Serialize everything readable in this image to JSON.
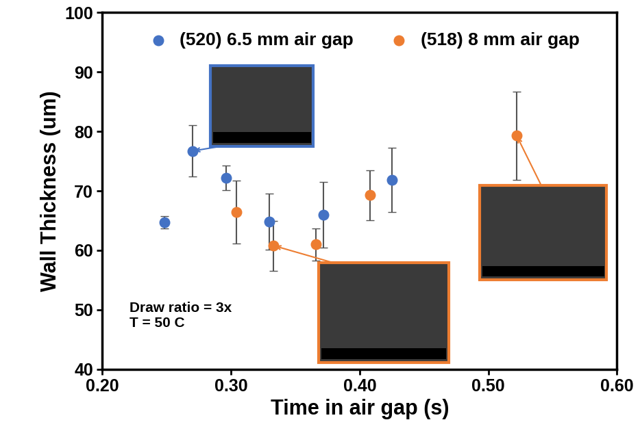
{
  "chart_data": {
    "type": "scatter",
    "x_label": "Time in air gap (s)",
    "y_label": "Wall Thickness (um)",
    "annotations": [
      "Draw ratio = 3x",
      "T = 50 C"
    ],
    "xlim": [
      0.2,
      0.6
    ],
    "xticks": [
      {
        "value": 0.2,
        "label": "0.20"
      },
      {
        "value": 0.3,
        "label": "0.30"
      },
      {
        "value": 0.4,
        "label": "0.40"
      },
      {
        "value": 0.5,
        "label": "0.50"
      },
      {
        "value": 0.6,
        "label": "0.60"
      }
    ],
    "ylim": [
      40,
      100
    ],
    "yticks": [
      40,
      50,
      60,
      70,
      80,
      90,
      100
    ],
    "grid": false,
    "legend": "upper center",
    "series": [
      {
        "name": "(520) 6.5 mm air gap",
        "color": "#4472c4",
        "marker": "circle",
        "x": [
          0.248,
          0.27,
          0.296,
          0.33,
          0.372,
          0.425
        ],
        "values": [
          64.7,
          76.7,
          72.2,
          64.8,
          66.0,
          71.8
        ],
        "error": [
          1.0,
          4.3,
          2.1,
          4.7,
          5.5,
          5.4
        ]
      },
      {
        "name": "(518) 8 mm air gap",
        "color": "#ed7d31",
        "marker": "circle",
        "x": [
          0.304,
          0.333,
          0.366,
          0.408,
          0.522
        ],
        "values": [
          66.4,
          60.8,
          61.0,
          69.3,
          79.3
        ],
        "error": [
          5.3,
          4.2,
          2.7,
          4.2,
          7.4
        ]
      }
    ]
  }
}
